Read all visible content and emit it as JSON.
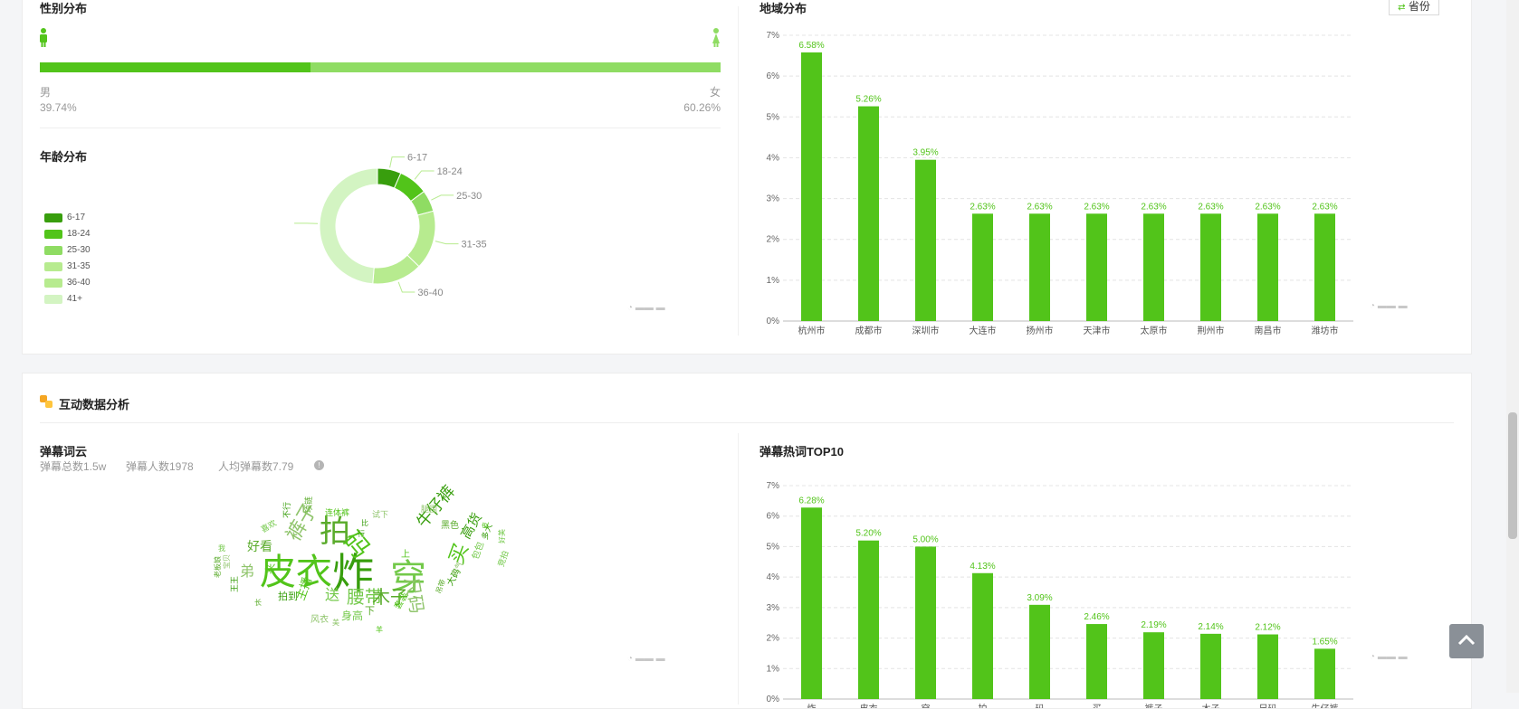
{
  "gender": {
    "title": "性别分布",
    "male_label": "男",
    "male_pct": "39.74%",
    "male_value": 39.74,
    "female_label": "女",
    "female_pct": "60.26%"
  },
  "age": {
    "title": "年龄分布"
  },
  "region": {
    "title": "地域分布",
    "province_button": "省份"
  },
  "interaction": {
    "title": "互动数据分析",
    "wordcloud_title": "弹幕词云",
    "stats": [
      "弹幕总数1.5w",
      "弹幕人数1978",
      "人均弹幕数7.79"
    ],
    "top10_title": "弹幕热词TOP10"
  },
  "wordcloud": [
    {
      "t": "皮衣",
      "s": 40
    },
    {
      "t": "炸",
      "s": 46
    },
    {
      "t": "穿",
      "s": 40
    },
    {
      "t": "拍",
      "s": 34
    },
    {
      "t": "裤子",
      "s": 22
    },
    {
      "t": "码",
      "s": 28
    },
    {
      "t": "牛仔裤",
      "s": 18
    },
    {
      "t": "腰带",
      "s": 20
    },
    {
      "t": "木子",
      "s": 20
    },
    {
      "t": "尺码",
      "s": 20
    },
    {
      "t": "买",
      "s": 22
    },
    {
      "t": "高货",
      "s": 15
    },
    {
      "t": "送",
      "s": 16
    },
    {
      "t": "好看",
      "s": 14
    },
    {
      "t": "弟",
      "s": 16
    },
    {
      "t": "主播",
      "s": 13
    },
    {
      "t": "拍到",
      "s": 11
    },
    {
      "t": "身高",
      "s": 12
    },
    {
      "t": "下",
      "s": 11
    },
    {
      "t": "风衣",
      "s": 10
    },
    {
      "t": "套装",
      "s": 10
    },
    {
      "t": "大码",
      "s": 10
    },
    {
      "t": "包包",
      "s": 10
    },
    {
      "t": "黑色",
      "s": 10
    },
    {
      "t": "腿围",
      "s": 9
    },
    {
      "t": "连体裤",
      "s": 9
    },
    {
      "t": "不行",
      "s": 9
    },
    {
      "t": "喜欢",
      "s": 9
    },
    {
      "t": "项链",
      "s": 9
    },
    {
      "t": "试下",
      "s": 9
    },
    {
      "t": "来",
      "s": 12
    },
    {
      "t": "多大",
      "s": 9
    },
    {
      "t": "竞拍",
      "s": 9
    },
    {
      "t": "吊带",
      "s": 8
    },
    {
      "t": "大气",
      "s": 9
    },
    {
      "t": "上",
      "s": 10
    },
    {
      "t": "王王",
      "s": 9
    },
    {
      "t": "好美",
      "s": 8
    },
    {
      "t": "老板娘",
      "s": 8
    },
    {
      "t": "宝贝",
      "s": 8
    },
    {
      "t": "皮",
      "s": 8
    },
    {
      "t": "行",
      "s": 8
    },
    {
      "t": "我",
      "s": 8
    },
    {
      "t": "长",
      "s": 8
    },
    {
      "t": "美",
      "s": 8
    },
    {
      "t": "羊",
      "s": 8
    },
    {
      "t": "比",
      "s": 8
    }
  ],
  "chart_data": [
    {
      "type": "pie",
      "subtype": "donut",
      "title": "年龄分布",
      "categories": [
        "6-17",
        "18-24",
        "25-30",
        "31-35",
        "36-40",
        "41+"
      ],
      "values": [
        6.6,
        8.2,
        6.0,
        16.5,
        14.0,
        48.7
      ],
      "colors": [
        "#389e0d",
        "#52c41a",
        "#8fdc63",
        "#b7eb8f",
        "#b7eb8f",
        "#d3f4c2"
      ],
      "legend": "left"
    },
    {
      "type": "bar",
      "title": "地域分布",
      "categories": [
        "杭州市",
        "成都市",
        "深圳市",
        "大连市",
        "扬州市",
        "天津市",
        "太原市",
        "荆州市",
        "南昌市",
        "潍坊市"
      ],
      "values": [
        6.58,
        5.26,
        3.95,
        2.63,
        2.63,
        2.63,
        2.63,
        2.63,
        2.63,
        2.63
      ],
      "data_labels": [
        "6.58%",
        "5.26%",
        "3.95%",
        "2.63%",
        "2.63%",
        "2.63%",
        "2.63%",
        "2.63%",
        "2.63%",
        "2.63%"
      ],
      "yticks": [
        "0%",
        "1%",
        "2%",
        "3%",
        "4%",
        "5%",
        "6%",
        "7%"
      ],
      "ylim": [
        0,
        7
      ],
      "color": "#52c41a",
      "grid": true
    },
    {
      "type": "bar",
      "title": "弹幕热词TOP10",
      "categories": [
        "炸",
        "皮衣",
        "穿",
        "拍",
        "码",
        "买",
        "裤子",
        "木子",
        "尺码",
        "牛仔裤"
      ],
      "values": [
        6.28,
        5.2,
        5.0,
        4.13,
        3.09,
        2.46,
        2.19,
        2.14,
        2.12,
        1.65
      ],
      "data_labels": [
        "6.28%",
        "5.20%",
        "5.00%",
        "4.13%",
        "3.09%",
        "2.46%",
        "2.19%",
        "2.14%",
        "2.12%",
        "1.65%"
      ],
      "yticks": [
        "0%",
        "1%",
        "2%",
        "3%",
        "4%",
        "5%",
        "6%",
        "7%"
      ],
      "ylim": [
        0,
        7
      ],
      "color": "#52c41a",
      "grid": true
    }
  ]
}
